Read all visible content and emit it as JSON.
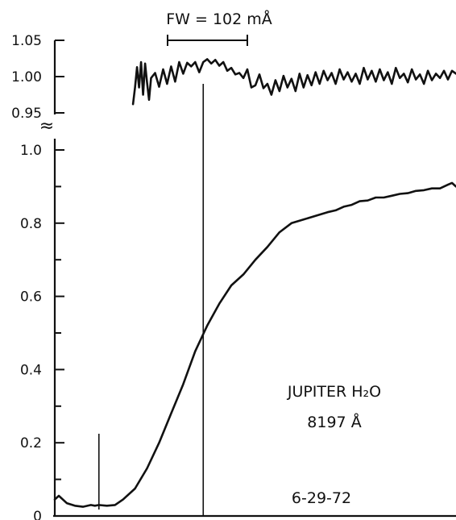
{
  "chart_data": [
    {
      "type": "line",
      "panel": "upper",
      "ylim": [
        0.95,
        1.05
      ],
      "yticks": [
        1.05,
        1.0,
        0.95
      ],
      "ytick_labels": [
        "1.05",
        "1.00",
        "0.95"
      ],
      "series": [
        {
          "x": [
            0.195,
            0.2,
            0.205,
            0.21,
            0.215,
            0.22,
            0.225,
            0.23,
            0.235,
            0.24,
            0.25,
            0.26,
            0.27,
            0.28,
            0.29,
            0.3,
            0.31,
            0.32,
            0.33,
            0.34,
            0.35,
            0.36,
            0.37,
            0.38,
            0.39,
            0.4,
            0.41,
            0.42,
            0.43,
            0.44,
            0.45,
            0.46,
            0.47,
            0.48,
            0.49,
            0.5,
            0.51,
            0.52,
            0.53,
            0.54,
            0.55,
            0.56,
            0.57,
            0.58,
            0.59,
            0.6,
            0.61,
            0.62,
            0.63,
            0.64,
            0.65,
            0.66,
            0.67,
            0.68,
            0.69,
            0.7,
            0.71,
            0.72,
            0.73,
            0.74,
            0.75,
            0.76,
            0.77,
            0.78,
            0.79,
            0.8,
            0.81,
            0.82,
            0.83,
            0.84,
            0.85,
            0.86,
            0.87,
            0.88,
            0.89,
            0.9,
            0.91,
            0.92,
            0.93,
            0.94,
            0.95,
            0.96,
            0.97,
            0.98,
            0.99,
            1.0
          ],
          "y": [
            0.962,
            0.985,
            1.013,
            0.985,
            1.02,
            0.975,
            1.018,
            0.992,
            0.968,
            0.998,
            1.005,
            0.986,
            1.01,
            0.99,
            1.014,
            0.993,
            1.02,
            1.004,
            1.019,
            1.014,
            1.02,
            1.006,
            1.02,
            1.024,
            1.018,
            1.023,
            1.015,
            1.02,
            1.008,
            1.012,
            1.003,
            1.005,
            0.998,
            1.01,
            0.985,
            0.988,
            1.003,
            0.984,
            0.99,
            0.975,
            0.995,
            0.98,
            1.001,
            0.985,
            0.997,
            0.98,
            1.004,
            0.985,
            1.002,
            0.988,
            1.006,
            0.99,
            1.008,
            0.995,
            1.005,
            0.99,
            1.01,
            0.996,
            1.006,
            0.993,
            1.004,
            0.99,
            1.012,
            0.996,
            1.008,
            0.993,
            1.01,
            0.995,
            1.006,
            0.99,
            1.012,
            0.998,
            1.004,
            0.992,
            1.01,
            0.996,
            1.003,
            0.99,
            1.008,
            0.995,
            1.004,
            0.998,
            1.008,
            0.996,
            1.008,
            1.004
          ]
        }
      ]
    },
    {
      "type": "line",
      "panel": "lower",
      "ylim": [
        0,
        1.0
      ],
      "yticks": [
        0,
        0.2,
        0.4,
        0.6,
        0.8,
        1.0
      ],
      "ytick_labels": [
        "0",
        "0.2",
        "0.4",
        "0.6",
        "0.8",
        "1.0"
      ],
      "series": [
        {
          "x": [
            0.0,
            0.01,
            0.02,
            0.03,
            0.05,
            0.07,
            0.09,
            0.1,
            0.11,
            0.13,
            0.15,
            0.17,
            0.2,
            0.23,
            0.26,
            0.29,
            0.32,
            0.35,
            0.38,
            0.41,
            0.44,
            0.47,
            0.5,
            0.53,
            0.56,
            0.59,
            0.62,
            0.65,
            0.68,
            0.7,
            0.72,
            0.74,
            0.76,
            0.78,
            0.8,
            0.82,
            0.84,
            0.86,
            0.88,
            0.9,
            0.92,
            0.94,
            0.96,
            0.98,
            0.99,
            1.0
          ],
          "y": [
            0.045,
            0.055,
            0.045,
            0.035,
            0.028,
            0.025,
            0.03,
            0.028,
            0.03,
            0.028,
            0.03,
            0.045,
            0.075,
            0.13,
            0.2,
            0.28,
            0.36,
            0.45,
            0.52,
            0.58,
            0.63,
            0.66,
            0.7,
            0.735,
            0.775,
            0.8,
            0.81,
            0.82,
            0.83,
            0.835,
            0.845,
            0.85,
            0.86,
            0.862,
            0.87,
            0.87,
            0.875,
            0.88,
            0.882,
            0.888,
            0.89,
            0.895,
            0.895,
            0.905,
            0.91,
            0.9
          ]
        }
      ],
      "markers_x": [
        0.11,
        0.37
      ]
    }
  ],
  "labels": {
    "fw_label": "FW = 102 mÅ",
    "break_symbol": "≈",
    "target_line1": "JUPITER H₂O",
    "target_line2": "8197 Å",
    "date": "6-29-72"
  }
}
